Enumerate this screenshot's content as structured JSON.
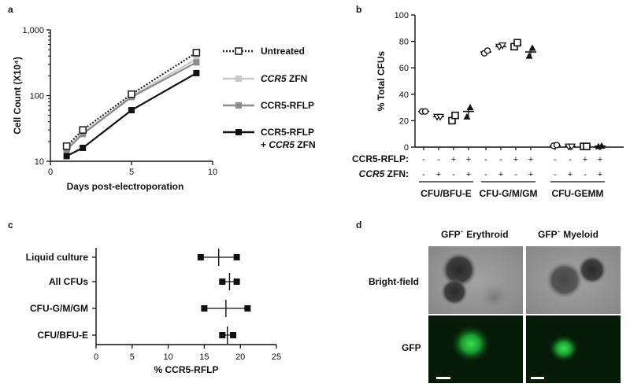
{
  "panels": {
    "a": "a",
    "b": "b",
    "c": "c",
    "d": "d"
  },
  "chart_data": [
    {
      "id": "a",
      "type": "line",
      "xlabel": "Days post-electroporation",
      "ylabel": "Cell Count (X10⁴)",
      "y_scale": "log",
      "xlim": [
        0,
        10
      ],
      "ylim": [
        10,
        1000
      ],
      "xticks": [
        0,
        5,
        10
      ],
      "yticks": [
        {
          "v": 10,
          "label": "10"
        },
        {
          "v": 100,
          "label": "100"
        },
        {
          "v": 1000,
          "label": "1,000"
        }
      ],
      "x": [
        1,
        2,
        5,
        9
      ],
      "series": [
        {
          "name": "Untreated",
          "color": "#222222",
          "dash": true,
          "marker": "open-square",
          "values": [
            17,
            30,
            105,
            450
          ]
        },
        {
          "name_parts": [
            "CCR5",
            " ZFN"
          ],
          "color": "#c8c8c8",
          "dash": false,
          "marker": "square",
          "values": [
            16,
            27,
            98,
            360
          ]
        },
        {
          "name": "CCR5-RFLP",
          "color": "#8c8c8c",
          "dash": false,
          "marker": "square",
          "values": [
            15,
            26,
            95,
            320
          ]
        },
        {
          "name_lines": [
            "CCR5-RFLP",
            "+ ",
            "CCR5",
            " ZFN"
          ],
          "color": "#111111",
          "dash": false,
          "marker": "square",
          "values": [
            12,
            16,
            60,
            220
          ]
        }
      ],
      "legend_position": "right"
    },
    {
      "id": "b",
      "type": "scatter",
      "ylabel": "% Total CFUs",
      "ylim": [
        0,
        100
      ],
      "yticks": [
        0,
        20,
        40,
        60,
        80,
        100
      ],
      "row_labels": [
        "CCR5-RFLP:",
        "CCR5 ZFN:"
      ],
      "row_label_parts": [
        [
          "CCR5-RFLP:"
        ],
        [
          "CCR5",
          " ZFN:"
        ]
      ],
      "conditions": [
        {
          "rflp": "-",
          "zfn": "-",
          "marker": "open-circle"
        },
        {
          "rflp": "-",
          "zfn": "+",
          "marker": "triangle-down-open"
        },
        {
          "rflp": "+",
          "zfn": "-",
          "marker": "open-square"
        },
        {
          "rflp": "+",
          "zfn": "+",
          "marker": "triangle-up"
        }
      ],
      "groups": [
        {
          "name": "CFU/BFU-E",
          "points": [
            [
              27,
              27
            ],
            [
              23,
              23
            ],
            [
              20,
              24
            ],
            [
              23,
              30
            ]
          ],
          "means": [
            27,
            23,
            22,
            27
          ]
        },
        {
          "name": "CFU-G/M/GM",
          "points": [
            [
              71,
              73
            ],
            [
              76,
              77
            ],
            [
              76,
              79
            ],
            [
              69,
              75
            ]
          ],
          "means": [
            72,
            76,
            77.5,
            72
          ]
        },
        {
          "name": "CFU-GEMM",
          "points": [
            [
              1,
              1.5
            ],
            [
              0.5,
              0.5
            ],
            [
              0.5,
              0.5
            ],
            [
              0.5,
              1
            ]
          ],
          "means": [
            1,
            0.5,
            0.5,
            0.8
          ]
        }
      ]
    },
    {
      "id": "c",
      "type": "scatter",
      "xlabel": "% CCR5-RFLP",
      "xlim": [
        0,
        25
      ],
      "xticks": [
        0,
        5,
        10,
        15,
        20,
        25
      ],
      "categories": [
        "Liquid culture",
        "All CFUs",
        "CFU-G/M/GM",
        "CFU/BFU-E"
      ],
      "points": [
        [
          14.5,
          19.5
        ],
        [
          17.5,
          19.5
        ],
        [
          15,
          21
        ],
        [
          17.5,
          19
        ]
      ],
      "means": [
        17,
        18.5,
        18,
        18.2
      ]
    }
  ],
  "micrographs": {
    "col_labels": [
      "GFP",
      "⁺",
      " Erythroid",
      "GFP",
      "⁺",
      " Myeloid"
    ],
    "row_labels": [
      "Bright-field",
      "GFP"
    ],
    "brightfield_color": "#8d8d8d",
    "fluorescence_color": "#1fbf3a"
  }
}
